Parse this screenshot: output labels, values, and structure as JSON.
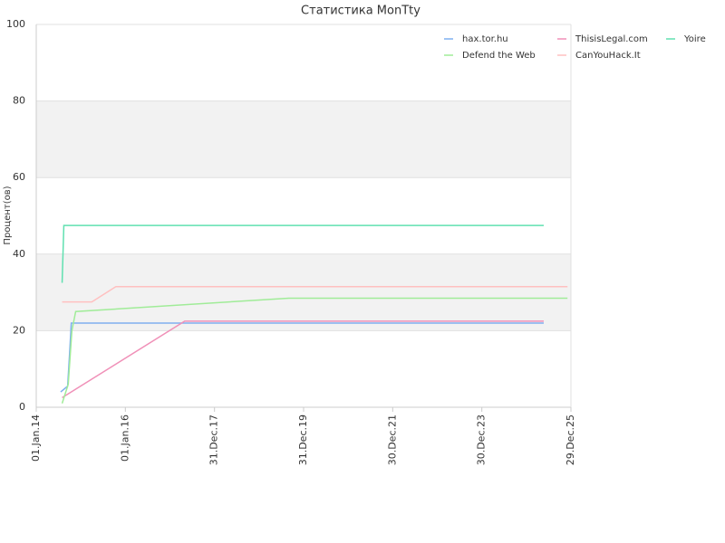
{
  "chart_data": {
    "type": "line",
    "title": "Статистика MonTty",
    "y_label": "Процент(ов)",
    "xlim": [
      "2014-01-01",
      "2025-12-29"
    ],
    "xticks": [
      {
        "value": "2014-01-01",
        "label": "01.Jan.14"
      },
      {
        "value": "2016-01-01",
        "label": "01.Jan.16"
      },
      {
        "value": "2017-12-31",
        "label": "31.Dec.17"
      },
      {
        "value": "2019-12-31",
        "label": "31.Dec.19"
      },
      {
        "value": "2021-12-30",
        "label": "30.Dec.21"
      },
      {
        "value": "2023-12-30",
        "label": "30.Dec.23"
      },
      {
        "value": "2025-12-29",
        "label": "29.Dec.25"
      }
    ],
    "ylim": [
      0,
      100
    ],
    "yticks": [
      0,
      20,
      40,
      60,
      80,
      100
    ],
    "bands": true,
    "series": [
      {
        "name": "hax.tor.hu",
        "color": "#7fb0f0",
        "x": [
          "2014-07-20",
          "2014-09-15",
          "2014-10-01",
          "2014-10-15",
          "2025-05-20"
        ],
        "values": [
          4,
          5.5,
          14,
          22,
          22
        ]
      },
      {
        "name": "ThisisLegal.com",
        "color": "#f090b8",
        "x": [
          "2014-08-01",
          "2017-05-01",
          "2025-05-20"
        ],
        "values": [
          2.5,
          22.5,
          22.5
        ]
      },
      {
        "name": "Yoire",
        "color": "#60e0b0",
        "x": [
          "2014-08-01",
          "2014-08-15",
          "2025-05-20"
        ],
        "values": [
          32.5,
          47.5,
          47.5
        ]
      },
      {
        "name": "Defend the Web",
        "color": "#a0ec98",
        "x": [
          "2014-08-01",
          "2014-09-20",
          "2014-10-20",
          "2014-11-20",
          "2019-09-01",
          "2025-12-01"
        ],
        "values": [
          1,
          6,
          20,
          25,
          28.5,
          28.5
        ]
      },
      {
        "name": "CanYouHack.It",
        "color": "#ffc0c0",
        "x": [
          "2014-08-01",
          "2015-04-01",
          "2015-10-15",
          "2025-12-01"
        ],
        "values": [
          27.5,
          27.5,
          31.5,
          31.5
        ]
      }
    ]
  }
}
